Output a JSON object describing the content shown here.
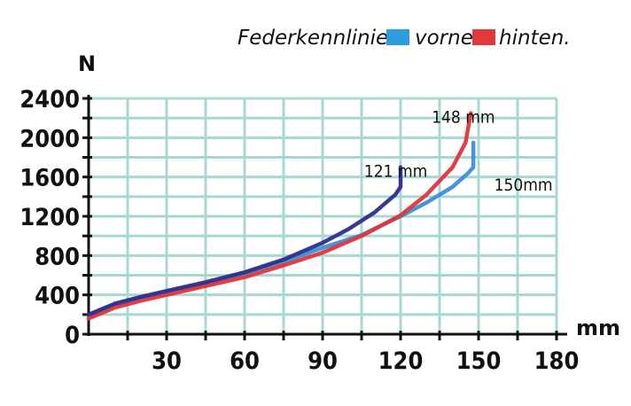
{
  "chart_data": {
    "type": "line",
    "title": "",
    "legend": {
      "title": "Federkennlinien:",
      "entries": [
        {
          "label": "vorne",
          "color": "#2f9be0"
        },
        {
          "label": "hinten.",
          "color": "#e23a3a"
        }
      ],
      "placement": "top-right"
    },
    "xlabel": "mm",
    "ylabel": "N",
    "xlim": [
      0,
      180
    ],
    "ylim": [
      0,
      2400
    ],
    "xticks": [
      30,
      60,
      90,
      120,
      150,
      180
    ],
    "yticks": [
      0,
      400,
      800,
      1200,
      1600,
      2000,
      2400
    ],
    "xtick_labels": [
      "30",
      "60",
      "90",
      "120",
      "150",
      "180"
    ],
    "ytick_labels": [
      "0",
      "400",
      "800",
      "1200",
      "1600",
      "2000",
      "2400"
    ],
    "grid": true,
    "grid_color": "#a8d8d4",
    "series": [
      {
        "name": "150mm (vorne)",
        "color": "#3a8fd8",
        "x": [
          0,
          10,
          20,
          30,
          45,
          60,
          75,
          90,
          105,
          120,
          130,
          140,
          146,
          148,
          148
        ],
        "y": [
          180,
          300,
          370,
          430,
          510,
          620,
          740,
          880,
          1010,
          1200,
          1340,
          1500,
          1640,
          1700,
          1950
        ]
      },
      {
        "name": "148 mm (hinten)",
        "color": "#e0353a",
        "x": [
          0,
          10,
          20,
          30,
          45,
          60,
          75,
          90,
          105,
          120,
          130,
          140,
          145,
          147
        ],
        "y": [
          160,
          270,
          340,
          400,
          490,
          580,
          700,
          830,
          1000,
          1210,
          1420,
          1700,
          1950,
          2250
        ]
      },
      {
        "name": "121 mm",
        "color": "#2d2f8c",
        "x": [
          0,
          10,
          20,
          30,
          45,
          60,
          75,
          90,
          100,
          110,
          118,
          120,
          120
        ],
        "y": [
          200,
          310,
          380,
          440,
          530,
          630,
          760,
          930,
          1070,
          1240,
          1420,
          1500,
          1700
        ]
      }
    ],
    "annotations": [
      {
        "text": "121 mm",
        "x": 106,
        "y": 1600
      },
      {
        "text": "148  mm",
        "x": 132,
        "y": 2150
      },
      {
        "text": "150mm",
        "x": 156,
        "y": 1460
      }
    ]
  }
}
